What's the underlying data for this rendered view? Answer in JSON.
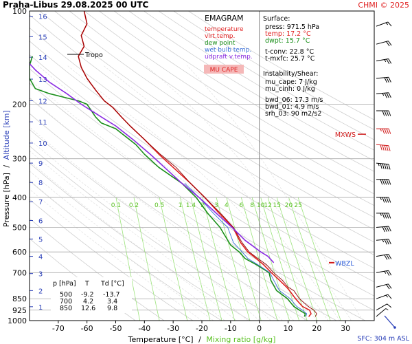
{
  "chart_data": {
    "type": "line",
    "title": "Praha-Libus   29.08.2025 00 UTC",
    "credit": "CHMI © 2025",
    "ylabel_pressure": "Pressure [hPa]",
    "ylabel_sep": "/",
    "ylabel_altitude": "Altitude [km]",
    "xlabel_temp": "Temperature [°C]",
    "xlabel_sep": "/",
    "xlabel_mix": "Mixing ratio [g/kg]",
    "sfc_label": "SFC: 304 m ASL",
    "xlim": [
      -80,
      40
    ],
    "ylim": [
      1000,
      100
    ],
    "x_ticks": [
      -70,
      -60,
      -50,
      -40,
      -30,
      -20,
      -10,
      0,
      10,
      20,
      30
    ],
    "p_ticks": [
      100,
      200,
      300,
      400,
      500,
      600,
      700,
      850,
      925,
      1000
    ],
    "altitude_ticks": [
      {
        "km": 1,
        "p": 902
      },
      {
        "km": 2,
        "p": 800
      },
      {
        "km": 3,
        "p": 705
      },
      {
        "km": 4,
        "p": 620
      },
      {
        "km": 5,
        "p": 545
      },
      {
        "km": 6,
        "p": 475
      },
      {
        "km": 7,
        "p": 413
      },
      {
        "km": 8,
        "p": 358
      },
      {
        "km": 9,
        "p": 310
      },
      {
        "km": 10,
        "p": 267
      },
      {
        "km": 11,
        "p": 228
      },
      {
        "km": 12,
        "p": 195
      },
      {
        "km": 13,
        "p": 166
      },
      {
        "km": 14,
        "p": 141
      },
      {
        "km": 15,
        "p": 121
      },
      {
        "km": 16,
        "p": 104
      }
    ],
    "mixing_ratio_labels": [
      "0.1",
      "0.2",
      "0.5",
      "1",
      "1.4",
      "2",
      "3",
      "4",
      "6",
      "8",
      "10",
      "12",
      "15",
      "20",
      "25"
    ],
    "mixing_ratio_values": [
      0.1,
      0.2,
      0.5,
      1,
      1.4,
      2,
      3,
      4,
      6,
      8,
      10,
      12,
      15,
      20,
      25
    ],
    "legend": {
      "heading": "EMAGRAM",
      "items": [
        {
          "label": "temperature",
          "color": "#e02020"
        },
        {
          "label": "virt.temp.",
          "color": "#e02020"
        },
        {
          "label": "dew point",
          "color": "#1a8f1a"
        },
        {
          "label": "wet bulb temp.",
          "color": "#3a6fd8"
        },
        {
          "label": "udpraft v.temp.",
          "color": "#8a2be2"
        }
      ],
      "badge": "MU CAPE"
    },
    "surface": {
      "heading": "Surface:",
      "press": "press: 971.5 hPa",
      "temp": "temp: 17.2 °C",
      "dwpt": "dwpt: 15.7 °C",
      "tconv": "t-conv: 22.8 °C",
      "tmxfc": "t-mxfc: 25.7 °C"
    },
    "instability": {
      "heading": "Instability/Shear:",
      "mu_cape": "mu_cape: 7 J/kg",
      "mu_cinh": "mu_cinh: 0 J/kg",
      "bwd06": "bwd_06: 17.3 m/s",
      "bwd01": "bwd_01: 4.9 m/s",
      "srh03": "srh_03: 90 m2/s2"
    },
    "table": {
      "headers": [
        "p [hPa]",
        "T",
        "Td [°C]"
      ],
      "rows": [
        [
          "500",
          "-9.2",
          "-13.7"
        ],
        [
          "700",
          "4.2",
          "3.4"
        ],
        [
          "850",
          "12.6",
          "9.8"
        ]
      ]
    },
    "annotations": {
      "tropo": "Tropo",
      "tropo_p": 138,
      "mxws": "MXWS",
      "mxws_p": 250,
      "wbzl": "WBZL",
      "wbzl_p": 650
    },
    "series": [
      {
        "name": "temperature",
        "color": "#e02020",
        "points": [
          [
            17.2,
            971
          ],
          [
            18,
            950
          ],
          [
            17.5,
            925
          ],
          [
            15,
            900
          ],
          [
            12.6,
            850
          ],
          [
            10.5,
            800
          ],
          [
            9.5,
            780
          ],
          [
            7,
            740
          ],
          [
            4.2,
            700
          ],
          [
            1.5,
            660
          ],
          [
            -2,
            620
          ],
          [
            -4,
            600
          ],
          [
            -6.5,
            560
          ],
          [
            -9.2,
            500
          ],
          [
            -14,
            450
          ],
          [
            -19,
            400
          ],
          [
            -24,
            360
          ],
          [
            -30,
            320
          ],
          [
            -35,
            290
          ],
          [
            -40,
            260
          ],
          [
            -45,
            235
          ],
          [
            -48,
            220
          ],
          [
            -51,
            205
          ],
          [
            -54,
            195
          ],
          [
            -57,
            180
          ],
          [
            -60,
            165
          ],
          [
            -62,
            152
          ],
          [
            -63,
            140
          ],
          [
            -61,
            130
          ],
          [
            -62,
            120
          ],
          [
            -60,
            110
          ],
          [
            -61,
            100
          ]
        ]
      },
      {
        "name": "virt.temp.",
        "color": "#8b0000",
        "points": [
          [
            19.5,
            971
          ],
          [
            20,
            950
          ],
          [
            19,
            925
          ],
          [
            17,
            900
          ],
          [
            14,
            850
          ],
          [
            12,
            800
          ],
          [
            10,
            780
          ],
          [
            8,
            740
          ],
          [
            5,
            700
          ],
          [
            2.5,
            660
          ],
          [
            -1.5,
            620
          ],
          [
            -3.5,
            600
          ],
          [
            -6,
            560
          ],
          [
            -9,
            500
          ],
          [
            -13.5,
            450
          ],
          [
            -19,
            400
          ],
          [
            -24,
            360
          ],
          [
            -29,
            320
          ],
          [
            -34.5,
            290
          ],
          [
            -40,
            260
          ],
          [
            -45,
            235
          ],
          [
            -48,
            220
          ],
          [
            -51,
            205
          ],
          [
            -54,
            195
          ],
          [
            -57,
            180
          ],
          [
            -60,
            165
          ],
          [
            -62,
            152
          ],
          [
            -63,
            140
          ],
          [
            -61,
            130
          ],
          [
            -62,
            120
          ],
          [
            -60,
            110
          ],
          [
            -61,
            100
          ]
        ]
      },
      {
        "name": "dew point",
        "color": "#1a8f1a",
        "points": [
          [
            15.7,
            971
          ],
          [
            16,
            950
          ],
          [
            14,
            925
          ],
          [
            12,
            900
          ],
          [
            9.8,
            850
          ],
          [
            6,
            800
          ],
          [
            5,
            770
          ],
          [
            4,
            740
          ],
          [
            3.4,
            700
          ],
          [
            -1,
            660
          ],
          [
            -5,
            630
          ],
          [
            -7,
            600
          ],
          [
            -10,
            570
          ],
          [
            -13.7,
            500
          ],
          [
            -18,
            450
          ],
          [
            -22,
            400
          ],
          [
            -27,
            360
          ],
          [
            -35,
            320
          ],
          [
            -40,
            290
          ],
          [
            -43,
            270
          ],
          [
            -50,
            240
          ],
          [
            -55,
            230
          ],
          [
            -57,
            220
          ],
          [
            -60,
            200
          ],
          [
            -63,
            195
          ],
          [
            -68,
            190
          ],
          [
            -73,
            185
          ],
          [
            -78,
            178
          ],
          [
            -80,
            165
          ],
          [
            -80,
            150
          ],
          [
            -79,
            140
          ]
        ]
      },
      {
        "name": "wet bulb temp.",
        "color": "#3a6fd8",
        "points": [
          [
            16.2,
            971
          ],
          [
            16.5,
            950
          ],
          [
            15,
            925
          ],
          [
            13,
            900
          ],
          [
            10.8,
            850
          ],
          [
            7,
            800
          ],
          [
            6,
            770
          ],
          [
            5,
            740
          ],
          [
            3.7,
            700
          ],
          [
            -0.5,
            660
          ],
          [
            -4,
            630
          ],
          [
            -6,
            600
          ],
          [
            -9,
            560
          ],
          [
            -11,
            500
          ],
          [
            -16,
            450
          ],
          [
            -21,
            400
          ],
          [
            -26,
            360
          ]
        ]
      },
      {
        "name": "udpraft v.temp.",
        "color": "#8a2be2",
        "points": [
          [
            5,
            650
          ],
          [
            3,
            620
          ],
          [
            0.5,
            600
          ],
          [
            -5,
            550
          ],
          [
            -9.5,
            500
          ],
          [
            -15,
            450
          ],
          [
            -21,
            400
          ],
          [
            -27,
            360
          ],
          [
            -33,
            320
          ],
          [
            -38,
            290
          ],
          [
            -44,
            260
          ],
          [
            -50,
            235
          ],
          [
            -55,
            220
          ],
          [
            -62,
            200
          ],
          [
            -67,
            185
          ],
          [
            -73,
            170
          ],
          [
            -78,
            155
          ],
          [
            -80,
            148
          ]
        ]
      }
    ],
    "wind_barbs": [
      {
        "p": 970,
        "dir": 230,
        "spd": 8
      },
      {
        "p": 925,
        "dir": 240,
        "spd": 10
      },
      {
        "p": 850,
        "dir": 250,
        "spd": 15
      },
      {
        "p": 780,
        "dir": 255,
        "spd": 20
      },
      {
        "p": 700,
        "dir": 260,
        "spd": 25
      },
      {
        "p": 620,
        "dir": 260,
        "spd": 30
      },
      {
        "p": 550,
        "dir": 265,
        "spd": 35
      },
      {
        "p": 500,
        "dir": 265,
        "spd": 40
      },
      {
        "p": 450,
        "dir": 270,
        "spd": 45
      },
      {
        "p": 400,
        "dir": 270,
        "spd": 45
      },
      {
        "p": 350,
        "dir": 270,
        "spd": 50
      },
      {
        "p": 310,
        "dir": 275,
        "spd": 55
      },
      {
        "p": 270,
        "dir": 275,
        "spd": 50
      },
      {
        "p": 240,
        "dir": 270,
        "spd": 45
      },
      {
        "p": 210,
        "dir": 270,
        "spd": 40
      },
      {
        "p": 185,
        "dir": 265,
        "spd": 35
      },
      {
        "p": 165,
        "dir": 265,
        "spd": 30
      },
      {
        "p": 145,
        "dir": 260,
        "spd": 25
      },
      {
        "p": 128,
        "dir": 255,
        "spd": 20
      },
      {
        "p": 112,
        "dir": 250,
        "spd": 15
      }
    ]
  }
}
